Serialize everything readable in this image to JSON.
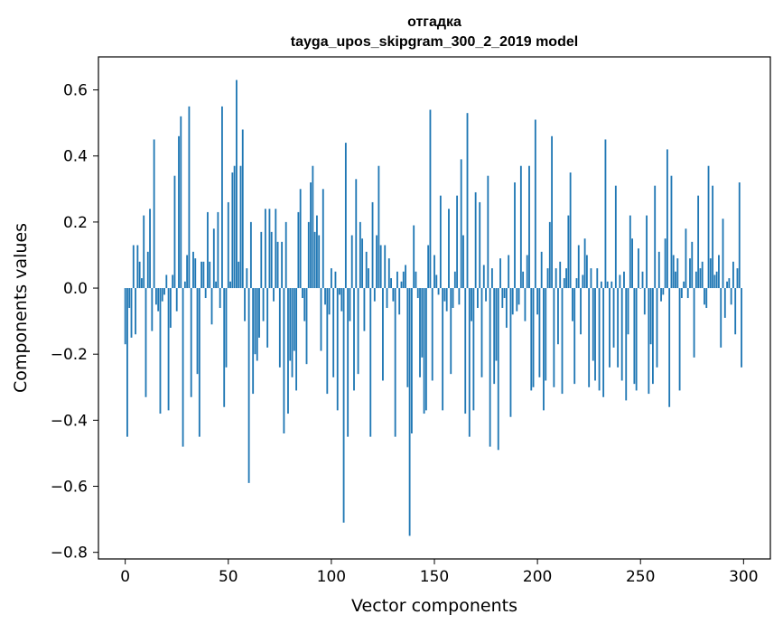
{
  "chart_data": {
    "type": "bar",
    "title": [
      "отгадка",
      "tayga_upos_skipgram_300_2_2019 model"
    ],
    "xlabel": "Vector components",
    "ylabel": "Components values",
    "xlim": [
      -13,
      313
    ],
    "ylim": [
      -0.82,
      0.7
    ],
    "xticks": [
      0,
      50,
      100,
      150,
      200,
      250,
      300
    ],
    "xtick_labels": [
      "0",
      "50",
      "100",
      "150",
      "200",
      "250",
      "300"
    ],
    "yticks": [
      -0.8,
      -0.6,
      -0.4,
      -0.2,
      0.0,
      0.2,
      0.4,
      0.6
    ],
    "ytick_labels": [
      "−0.8",
      "−0.6",
      "−0.4",
      "−0.2",
      "0.0",
      "0.2",
      "0.4",
      "0.6"
    ],
    "grid": false,
    "bar_color": "#1f77b4",
    "values": [
      -0.17,
      -0.45,
      -0.06,
      -0.15,
      0.13,
      -0.14,
      0.13,
      0.08,
      0.03,
      0.22,
      -0.33,
      0.11,
      0.24,
      -0.13,
      0.45,
      -0.05,
      -0.07,
      -0.38,
      -0.04,
      -0.02,
      0.04,
      -0.37,
      -0.12,
      0.04,
      0.34,
      -0.07,
      0.46,
      0.52,
      -0.48,
      0.02,
      0.1,
      0.55,
      -0.33,
      0.11,
      0.09,
      -0.26,
      -0.45,
      0.08,
      0.08,
      -0.03,
      0.23,
      0.08,
      -0.11,
      0.18,
      0.02,
      0.23,
      -0.06,
      0.55,
      -0.36,
      -0.24,
      0.26,
      0.02,
      0.35,
      0.37,
      0.63,
      0.08,
      0.37,
      0.48,
      -0.1,
      0.06,
      -0.59,
      0.2,
      -0.32,
      -0.2,
      -0.22,
      -0.15,
      0.17,
      -0.1,
      0.24,
      -0.18,
      0.24,
      0.17,
      -0.04,
      0.24,
      0.14,
      -0.24,
      0.14,
      -0.44,
      0.2,
      -0.38,
      -0.22,
      -0.27,
      -0.19,
      -0.31,
      0.23,
      0.3,
      -0.03,
      -0.1,
      -0.23,
      0.2,
      0.32,
      0.37,
      0.17,
      0.22,
      0.16,
      -0.19,
      0.3,
      -0.05,
      -0.32,
      -0.08,
      0.06,
      -0.27,
      0.05,
      -0.37,
      -0.02,
      -0.07,
      -0.71,
      0.44,
      -0.45,
      -0.1,
      0.16,
      -0.31,
      0.33,
      -0.26,
      0.2,
      0.15,
      -0.13,
      0.11,
      0.06,
      -0.45,
      0.26,
      -0.04,
      0.16,
      0.37,
      0.13,
      -0.28,
      0.13,
      -0.06,
      0.09,
      0.03,
      -0.04,
      -0.45,
      0.05,
      -0.08,
      0.02,
      0.05,
      0.07,
      -0.3,
      -0.75,
      -0.44,
      0.19,
      0.05,
      -0.03,
      -0.27,
      -0.21,
      -0.38,
      -0.37,
      0.13,
      0.54,
      -0.28,
      0.1,
      0.04,
      -0.02,
      0.28,
      -0.37,
      -0.04,
      -0.07,
      0.24,
      -0.26,
      -0.06,
      0.05,
      0.28,
      -0.05,
      0.39,
      0.16,
      -0.38,
      0.53,
      -0.45,
      -0.1,
      -0.37,
      0.29,
      -0.06,
      0.26,
      -0.27,
      0.07,
      -0.04,
      0.34,
      -0.48,
      0.06,
      -0.29,
      -0.22,
      -0.49,
      0.09,
      -0.06,
      -0.03,
      -0.12,
      0.1,
      -0.39,
      -0.08,
      0.32,
      -0.07,
      -0.05,
      0.37,
      0.05,
      -0.1,
      0.1,
      0.37,
      -0.31,
      -0.3,
      0.51,
      -0.08,
      -0.27,
      0.11,
      -0.37,
      -0.28,
      0.06,
      0.2,
      0.46,
      -0.3,
      0.06,
      -0.17,
      0.08,
      -0.32,
      0.03,
      0.06,
      0.22,
      0.35,
      -0.1,
      -0.29,
      0.03,
      0.13,
      -0.14,
      0.04,
      0.15,
      0.1,
      -0.3,
      0.06,
      -0.22,
      -0.28,
      0.06,
      -0.31,
      0.02,
      -0.33,
      0.45,
      0.02,
      -0.24,
      0.02,
      -0.18,
      0.31,
      -0.24,
      0.04,
      -0.28,
      0.05,
      -0.34,
      -0.14,
      0.22,
      0.15,
      -0.29,
      -0.31,
      0.12,
      0.0,
      0.05,
      -0.08,
      0.22,
      -0.32,
      -0.17,
      -0.29,
      0.31,
      -0.24,
      0.11,
      -0.04,
      -0.02,
      0.15,
      0.42,
      -0.36,
      0.34,
      0.1,
      0.05,
      0.09,
      -0.31,
      -0.03,
      0.02,
      0.18,
      -0.03,
      0.09,
      0.14,
      -0.21,
      0.05,
      0.28,
      0.06,
      0.08,
      -0.05,
      -0.06,
      0.37,
      0.09,
      0.31,
      0.04,
      0.05,
      0.1,
      -0.18,
      0.21,
      -0.09,
      0.02,
      0.03,
      -0.05,
      0.08,
      -0.14,
      0.06,
      0.32,
      -0.24
    ]
  }
}
